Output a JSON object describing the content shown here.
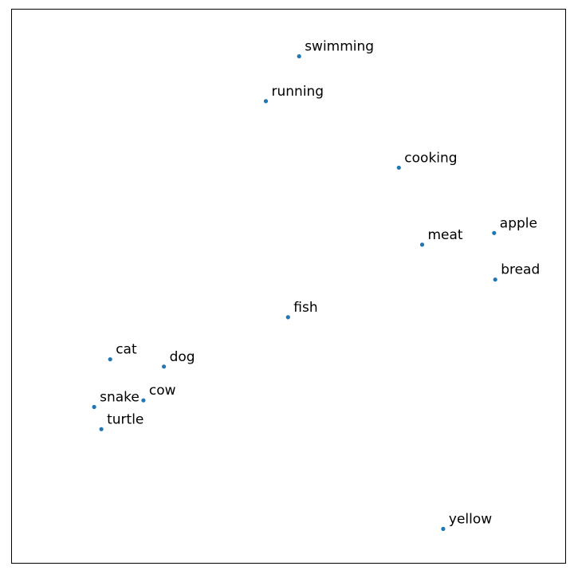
{
  "chart_data": {
    "type": "scatter",
    "title": "",
    "xlabel": "",
    "ylabel": "",
    "xlim": [
      0,
      100
    ],
    "ylim": [
      0,
      100
    ],
    "grid": false,
    "axes_ticks_visible": false,
    "marker_color": "#1f77b4",
    "points": [
      {
        "label": "swimming",
        "x": 51.9,
        "y": 91.5
      },
      {
        "label": "running",
        "x": 45.9,
        "y": 83.4
      },
      {
        "label": "cooking",
        "x": 69.9,
        "y": 71.4
      },
      {
        "label": "apple",
        "x": 87.1,
        "y": 59.6
      },
      {
        "label": "meat",
        "x": 74.1,
        "y": 57.5
      },
      {
        "label": "bread",
        "x": 87.3,
        "y": 51.2
      },
      {
        "label": "fish",
        "x": 49.9,
        "y": 44.4
      },
      {
        "label": "cat",
        "x": 17.8,
        "y": 36.8
      },
      {
        "label": "dog",
        "x": 27.5,
        "y": 35.5
      },
      {
        "label": "cow",
        "x": 23.8,
        "y": 29.4
      },
      {
        "label": "snake",
        "x": 14.9,
        "y": 28.2
      },
      {
        "label": "turtle",
        "x": 16.2,
        "y": 24.2
      },
      {
        "label": "yellow",
        "x": 77.9,
        "y": 6.2
      }
    ]
  }
}
